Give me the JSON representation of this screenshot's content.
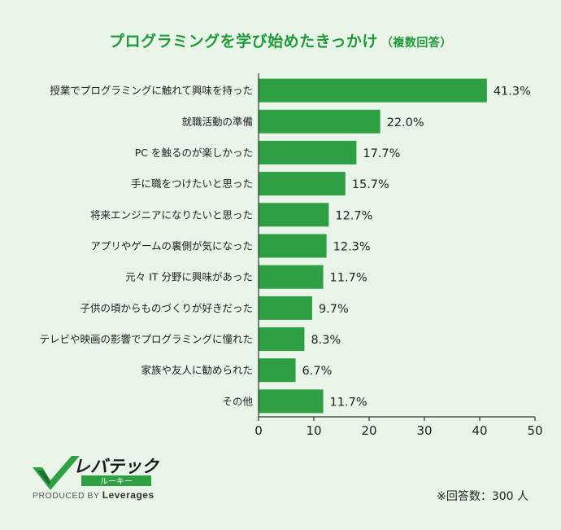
{
  "title": {
    "main": "プログラミングを学び始めたきっかけ",
    "sub": "（複数回答）"
  },
  "chart_data": {
    "type": "bar",
    "orientation": "horizontal",
    "categories": [
      "授業でプログラミングに触れて興味を持った",
      "就職活動の準備",
      "PC を触るのが楽しかった",
      "手に職をつけたいと思った",
      "将来エンジニアになりたいと思った",
      "アプリやゲームの裏側が気になった",
      "元々 IT 分野に興味があった",
      "子供の頃からものづくりが好きだった",
      "テレビや映画の影響でプログラミングに憧れた",
      "家族や友人に勧められた",
      "その他"
    ],
    "values": [
      41.3,
      22.0,
      17.7,
      15.7,
      12.7,
      12.3,
      11.7,
      9.7,
      8.3,
      6.7,
      11.7
    ],
    "value_labels": [
      "41.3%",
      "22.0%",
      "17.7%",
      "15.7%",
      "12.7%",
      "12.3%",
      "11.7%",
      "9.7%",
      "8.3%",
      "6.7%",
      "11.7%"
    ],
    "xlim": [
      0,
      50
    ],
    "xticks": [
      "0",
      "10",
      "20",
      "30",
      "40",
      "50"
    ],
    "bar_color": "#2ea043",
    "grid": false
  },
  "logo": {
    "brand": "レバテック",
    "sub": "ルーキー",
    "produced_by": "PRODUCED BY",
    "company": "Leverages"
  },
  "footnote": "※回答数：300 人",
  "colors": {
    "accent": "#1f9a3a",
    "background": "#e9f5e9"
  }
}
